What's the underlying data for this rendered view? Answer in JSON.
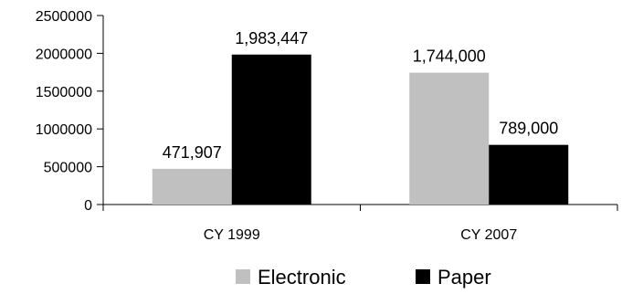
{
  "chart_data": {
    "type": "bar",
    "categories": [
      "CY 1999",
      "CY 2007"
    ],
    "series": [
      {
        "name": "Electronic",
        "color": "#c0c0c0",
        "values": [
          471907,
          1744000
        ],
        "labels": [
          "471,907",
          "1,744,000"
        ]
      },
      {
        "name": "Paper",
        "color": "#000000",
        "values": [
          1983447,
          789000
        ],
        "labels": [
          "1,983,447",
          "789,000"
        ]
      }
    ],
    "ylim": [
      0,
      2500000
    ],
    "yticks": [
      0,
      500000,
      1000000,
      1500000,
      2000000,
      2500000
    ],
    "ytick_labels": [
      "0",
      "500000",
      "1000000",
      "1500000",
      "2000000",
      "2500000"
    ],
    "grid": false,
    "legend_position": "bottom"
  }
}
